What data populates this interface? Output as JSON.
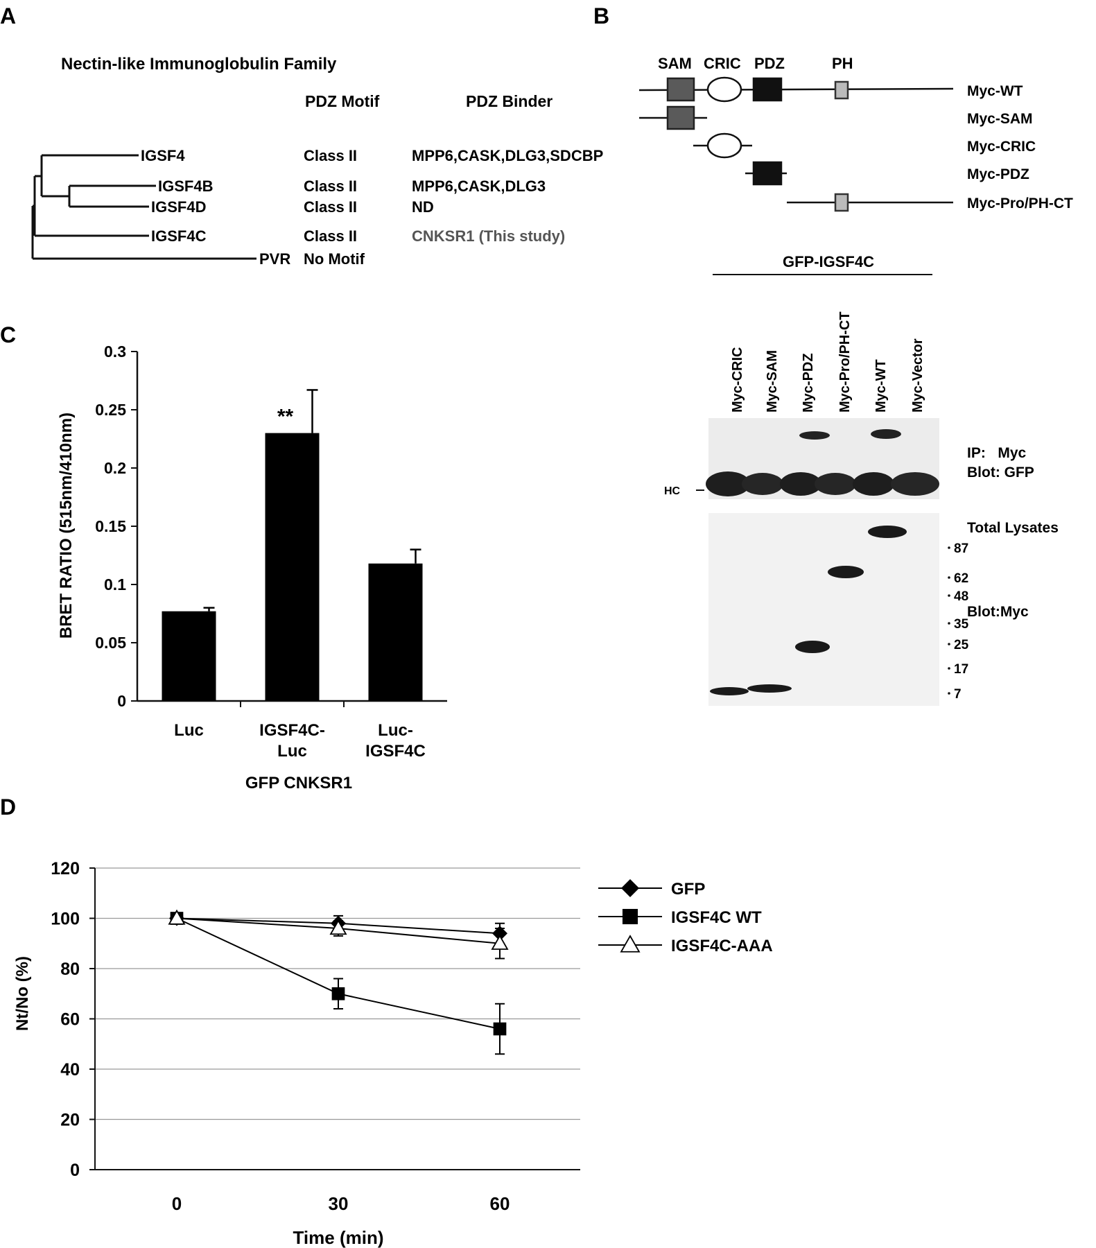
{
  "panelA": {
    "letter": "A",
    "title": "Nectin-like Immunoglobulin Family",
    "col_motif": "PDZ Motif",
    "col_binder": "PDZ Binder",
    "rows": [
      {
        "name": "IGSF4",
        "motif": "Class II",
        "binder": "MPP6,CASK,DLG3,SDCBP"
      },
      {
        "name": "IGSF4B",
        "motif": "Class II",
        "binder": "MPP6,CASK,DLG3"
      },
      {
        "name": "IGSF4D",
        "motif": "Class II",
        "binder": "ND"
      },
      {
        "name": "IGSF4C",
        "motif": "Class II",
        "binder": "CNKSR1 (This study)"
      },
      {
        "name": "PVR",
        "motif": "No Motif",
        "binder": ""
      }
    ],
    "colors": {
      "highlight": "#555555"
    }
  },
  "panelB": {
    "letter": "B",
    "domains": [
      "SAM",
      "CRIC",
      "PDZ",
      "PH"
    ],
    "constructs": [
      "Myc-WT",
      "Myc-SAM",
      "Myc-CRIC",
      "Myc-PDZ",
      "Myc-Pro/PH-CT"
    ],
    "gel_header": "GFP-IGSF4C",
    "lanes": [
      "Myc-CRIC",
      "Myc-SAM",
      "Myc-PDZ",
      "Myc-Pro/PH-CT",
      "Myc-WT",
      "Myc-Vector"
    ],
    "hc_label": "HC",
    "ip_label_1": "IP:   Myc",
    "ip_label_2": "Blot: GFP",
    "lysate_label": "Total Lysates",
    "blot_label": "Blot:Myc",
    "markers": [
      "87",
      "62",
      "48",
      "35",
      "25",
      "17",
      "7"
    ],
    "colors": {
      "sam": "#5a5a5a",
      "pdz": "#111111",
      "ph": "#bbbbbb"
    }
  },
  "chart_data": [
    {
      "panel": "C",
      "type": "bar",
      "categories": [
        "Luc",
        "IGSF4C-\nLuc",
        "Luc-\nIGSF4C"
      ],
      "values": [
        0.077,
        0.23,
        0.118
      ],
      "errors": [
        0.003,
        0.037,
        0.012
      ],
      "annotations": [
        {
          "category_index": 1,
          "text": "**"
        }
      ],
      "ylabel": "BRET RATIO (515nm/410nm)",
      "xlabel": "GFP CNKSR1",
      "ylim": [
        0,
        0.3
      ],
      "yticks": [
        "0",
        "0.05",
        "0.1",
        "0.15",
        "0.2",
        "0.25",
        "0.3"
      ],
      "grid": false
    },
    {
      "panel": "D",
      "type": "line",
      "x": [
        0,
        30,
        60
      ],
      "series": [
        {
          "name": "GFP",
          "marker": "diamond",
          "values": [
            100,
            98,
            94
          ],
          "errors": [
            0,
            3,
            4
          ]
        },
        {
          "name": "IGSF4C WT",
          "marker": "square",
          "values": [
            100,
            70,
            56
          ],
          "errors": [
            0,
            6,
            10
          ]
        },
        {
          "name": "IGSF4C-AAA",
          "marker": "triangle",
          "values": [
            100,
            96,
            90
          ],
          "errors": [
            0,
            3,
            6
          ]
        }
      ],
      "xlabel": "Time (min)",
      "ylabel": "Nt/No (%)",
      "ylim": [
        0,
        120
      ],
      "yticks": [
        "0",
        "20",
        "40",
        "60",
        "80",
        "100",
        "120"
      ],
      "xticks": [
        "0",
        "30",
        "60"
      ],
      "grid": true,
      "legend": "right"
    }
  ],
  "letters": {
    "C": "C",
    "D": "D"
  }
}
